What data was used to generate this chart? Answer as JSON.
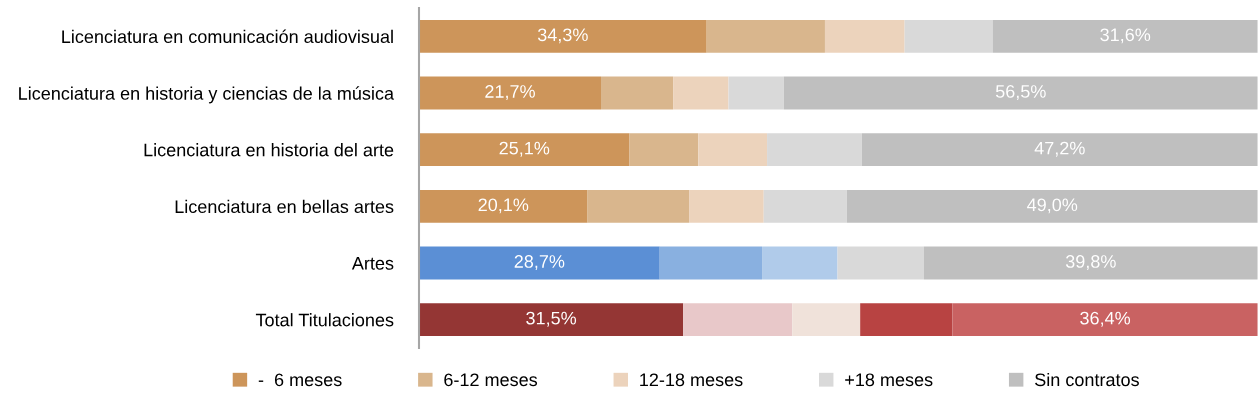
{
  "chart_data": {
    "type": "bar",
    "orientation": "horizontal",
    "stacked": true,
    "legend": "bottom",
    "grid": false,
    "tick_labels": "y",
    "xlim": [
      0,
      100
    ],
    "categories": [
      "Licenciatura en comunicación audiovisual",
      "Licenciatura en historia y ciencias de la música",
      "Licenciatura en historia del arte",
      "Licenciatura en bellas artes",
      "Artes",
      "Total Titulaciones"
    ],
    "series": [
      {
        "name": "-  6 meses",
        "color": "#cd955a",
        "colors": [
          "#cd955a",
          "#cd955a",
          "#cd955a",
          "#cd955a",
          "#5b8fd5",
          "#943634"
        ],
        "values": [
          34.3,
          21.7,
          25.1,
          20.1,
          28.7,
          31.5
        ],
        "value_labels": [
          "34,3%",
          "21,7%",
          "25,1%",
          "20,1%",
          "28,7%",
          "31,5%"
        ]
      },
      {
        "name": "6-12 meses",
        "color": "#d9b68d",
        "colors": [
          "#d9b68d",
          "#d9b68d",
          "#d9b68d",
          "#d9b68d",
          "#89b0e0",
          "#e8c8c9"
        ],
        "values": [
          14.1,
          8.6,
          8.2,
          12.1,
          12.2,
          13.0
        ]
      },
      {
        "name": "12-18 meses",
        "color": "#ecd3bc",
        "colors": [
          "#ecd3bc",
          "#ecd3bc",
          "#ecd3bc",
          "#ecd3bc",
          "#b0cbea",
          "#f0e2da"
        ],
        "values": [
          9.5,
          6.6,
          8.2,
          8.9,
          9.0,
          8.1
        ]
      },
      {
        "name": "+18 meses",
        "color": "#d9d9d9",
        "colors": [
          "#d9d9d9",
          "#d9d9d9",
          "#d9d9d9",
          "#d9d9d9",
          "#d9d9d9",
          "#b84342"
        ],
        "values": [
          10.5,
          6.6,
          11.3,
          9.9,
          10.3,
          11.0
        ]
      },
      {
        "name": "Sin contratos",
        "color": "#bfbfbf",
        "colors": [
          "#bfbfbf",
          "#bfbfbf",
          "#bfbfbf",
          "#bfbfbf",
          "#bfbfbf",
          "#c96262"
        ],
        "values": [
          31.6,
          56.5,
          47.2,
          49.0,
          39.8,
          36.4
        ],
        "value_labels": [
          "31,6%",
          "56,5%",
          "47,2%",
          "49,0%",
          "39,8%",
          "36,4%"
        ]
      }
    ]
  }
}
